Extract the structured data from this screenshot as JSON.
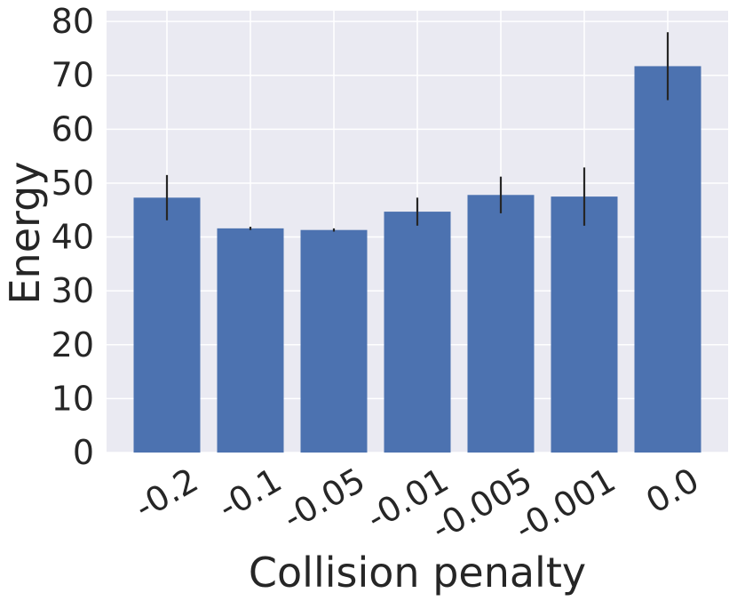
{
  "chart_data": {
    "type": "bar",
    "title": "",
    "xlabel": "Collision penalty",
    "ylabel": "Energy",
    "categories": [
      "-0.2",
      "-0.1",
      "-0.05",
      "-0.01",
      "-0.005",
      "-0.001",
      "0.0"
    ],
    "values": [
      47.3,
      41.6,
      41.3,
      44.7,
      47.8,
      47.5,
      71.7
    ],
    "errors": [
      4.2,
      0.3,
      0.3,
      2.6,
      3.4,
      5.4,
      6.3
    ],
    "ylim": [
      0,
      82
    ],
    "yticks": [
      0,
      10,
      20,
      30,
      40,
      50,
      60,
      70,
      80
    ],
    "grid": true,
    "colors": {
      "bar": "#4c72b0",
      "plot_background": "#eaeaf2",
      "grid": "#ffffff",
      "error_bar": "#262626",
      "text": "#262626"
    }
  }
}
